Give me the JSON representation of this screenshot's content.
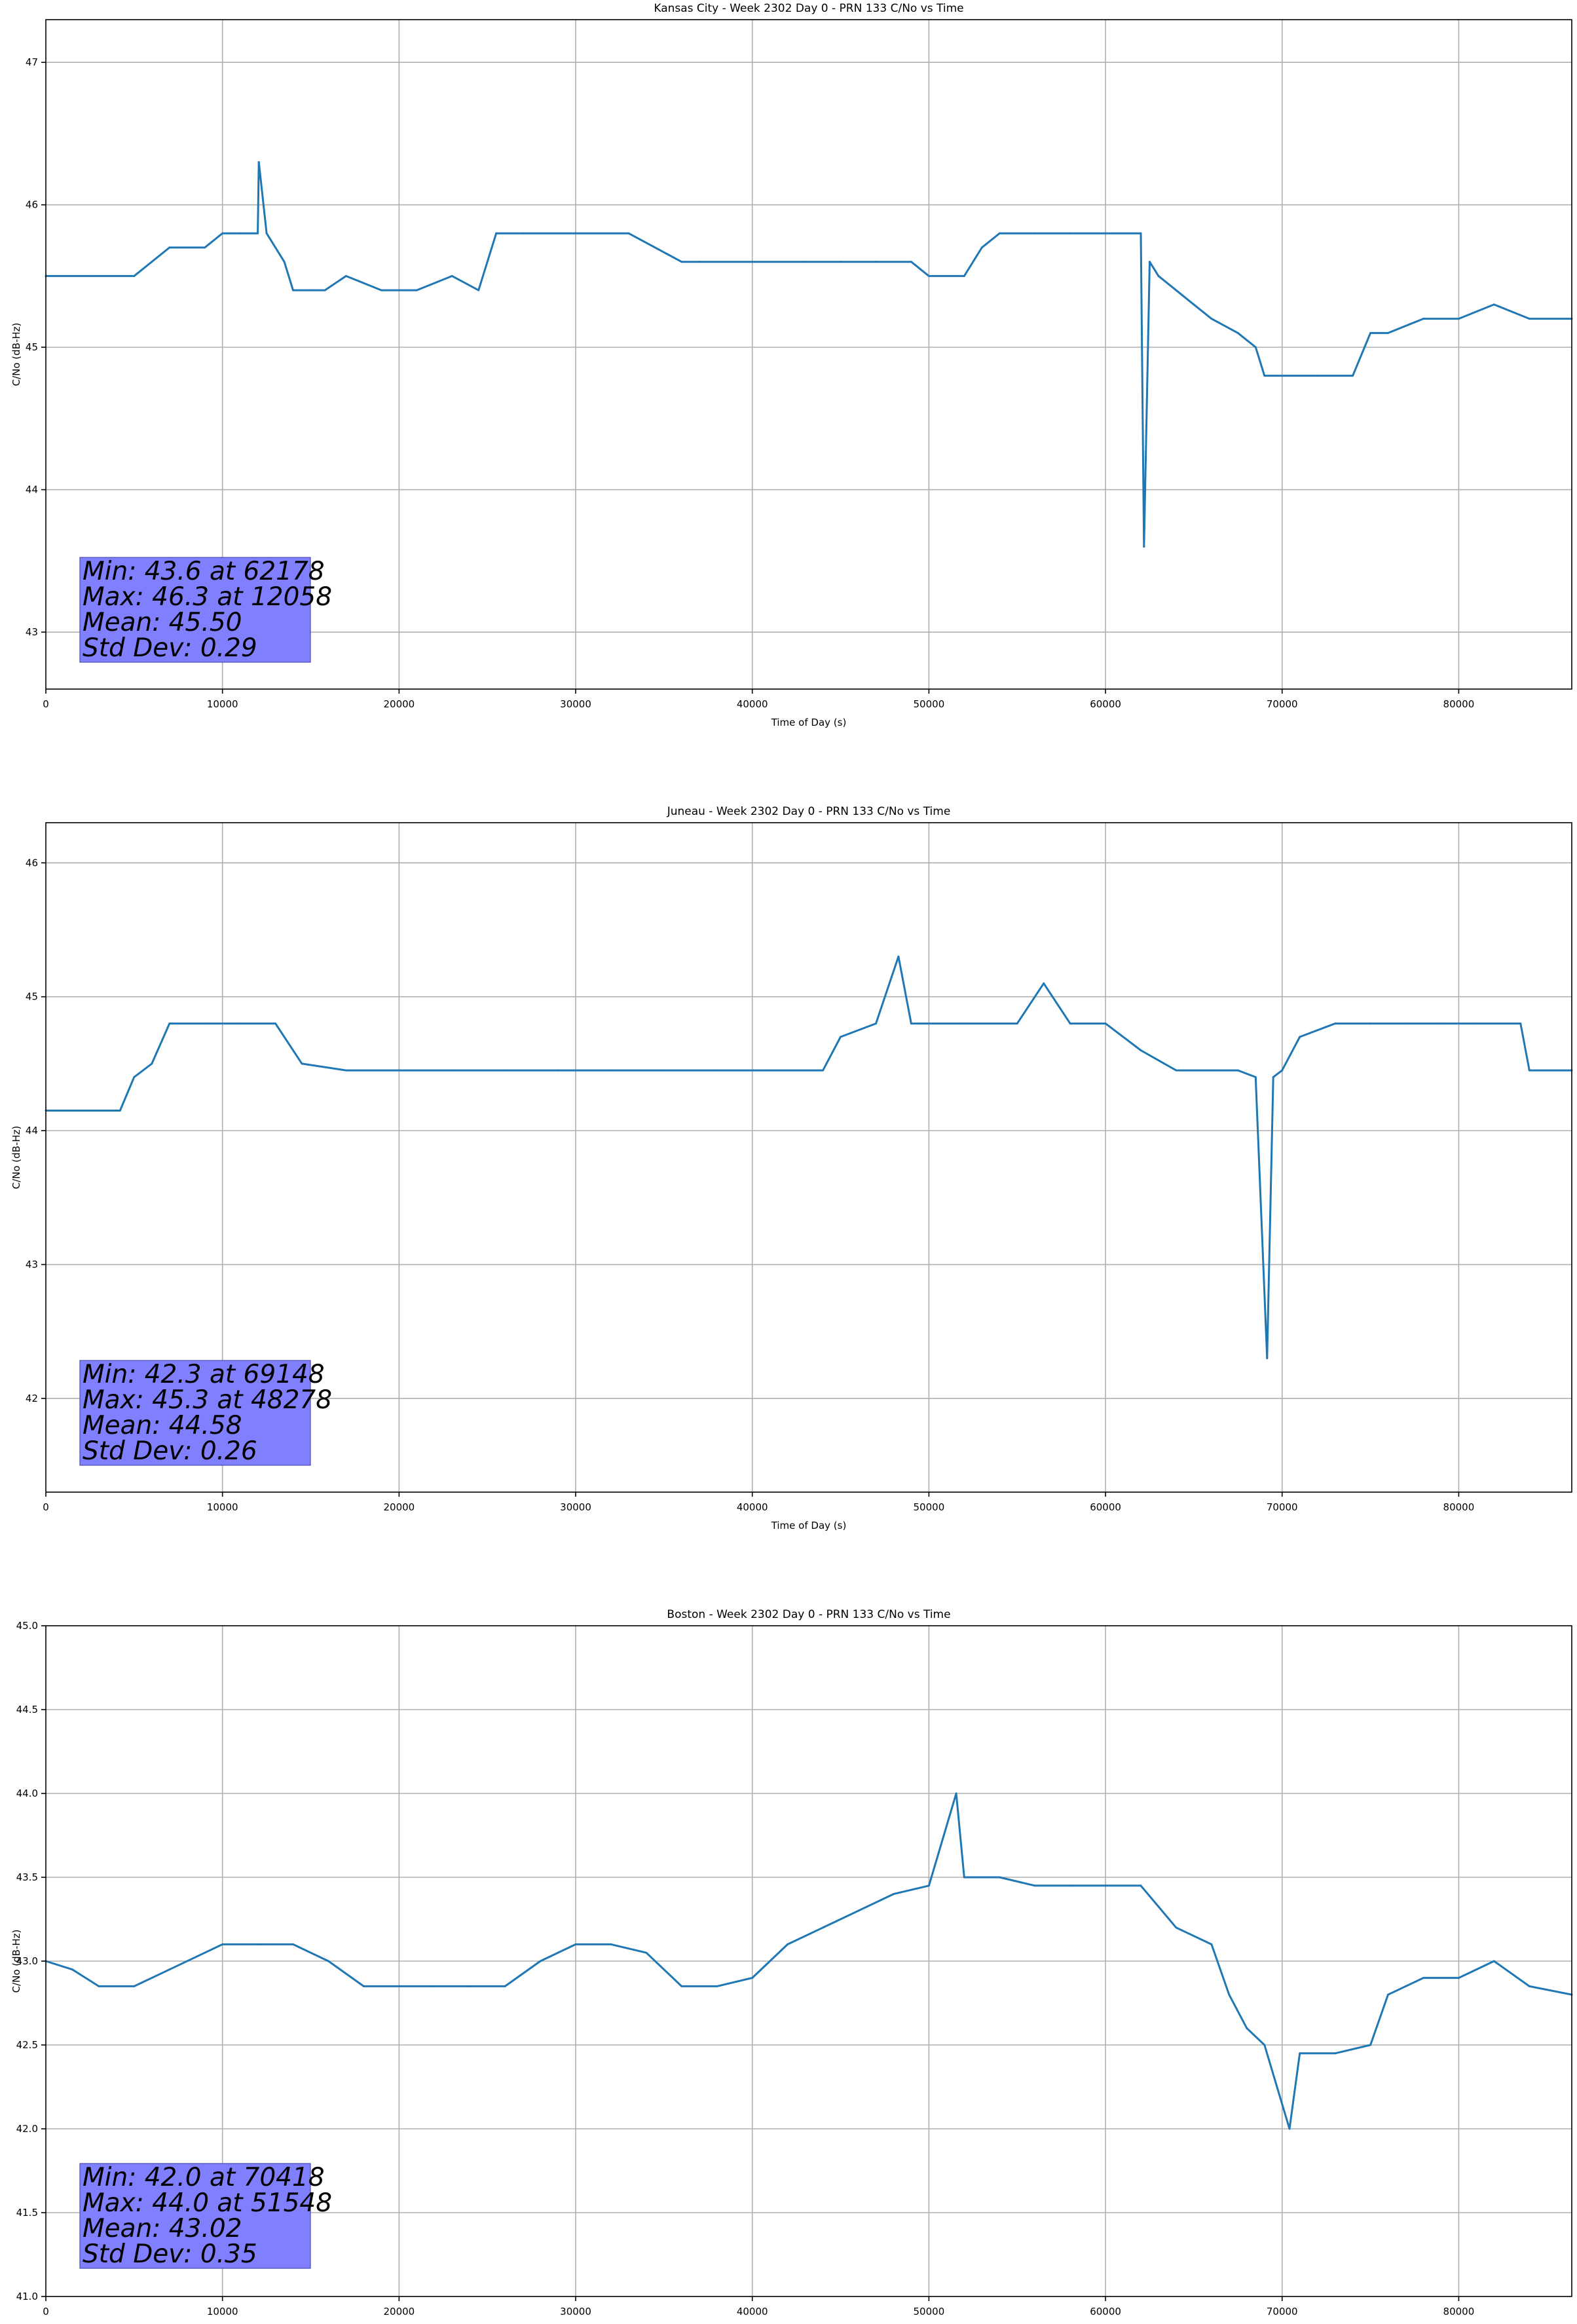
{
  "chart_data": [
    {
      "type": "line",
      "title": "Kansas City - Week 2302 Day 0 - PRN 133 C/No vs Time",
      "xlabel": "Time of Day (s)",
      "ylabel": "C/No (dB-Hz)",
      "xlim": [
        0,
        86400
      ],
      "ylim": [
        42.6,
        47.3
      ],
      "xticks": [
        0,
        10000,
        20000,
        30000,
        40000,
        50000,
        60000,
        70000,
        80000
      ],
      "xtick_labels": [
        "0",
        "10000",
        "20000",
        "30000",
        "40000",
        "50000",
        "60000",
        "70000",
        "80000"
      ],
      "yticks": [
        43,
        44,
        45,
        46,
        47
      ],
      "ytick_labels": [
        "43",
        "44",
        "45",
        "46",
        "47"
      ],
      "grid": true,
      "series_color": "#1f77b4",
      "series": [
        {
          "x": [
            0,
            2500,
            5000,
            7000,
            9000,
            10000,
            11000,
            12000,
            12058,
            12500,
            13500,
            14000,
            15000,
            15800,
            17000,
            19000,
            21000,
            23000,
            24500,
            25500,
            27000,
            30000,
            33000,
            36000,
            37000,
            40000,
            43000,
            45000,
            47000,
            49000,
            50000,
            52000,
            53000,
            54000,
            56000,
            58000,
            60000,
            62000,
            62178,
            62500,
            63000,
            64000,
            65000,
            66000,
            67500,
            68500,
            69000,
            70000,
            71000,
            72000,
            73000,
            74000,
            75000,
            76000,
            78000,
            80000,
            82000,
            84000,
            86400
          ],
          "y": [
            45.5,
            45.5,
            45.5,
            45.7,
            45.7,
            45.8,
            45.8,
            45.8,
            46.3,
            45.8,
            45.6,
            45.4,
            45.4,
            45.4,
            45.5,
            45.4,
            45.4,
            45.5,
            45.4,
            45.8,
            45.8,
            45.8,
            45.8,
            45.6,
            45.6,
            45.6,
            45.6,
            45.6,
            45.6,
            45.6,
            45.5,
            45.5,
            45.7,
            45.8,
            45.8,
            45.8,
            45.8,
            45.8,
            43.6,
            45.6,
            45.5,
            45.4,
            45.3,
            45.2,
            45.1,
            45.0,
            44.8,
            44.8,
            44.8,
            44.8,
            44.8,
            44.8,
            45.1,
            45.1,
            45.2,
            45.2,
            45.3,
            45.2,
            45.2
          ]
        }
      ],
      "stats_lines": [
        "Min: 43.6 at 62178",
        "Max: 46.3 at 12058",
        "Mean: 45.50",
        "Std Dev: 0.29"
      ]
    },
    {
      "type": "line",
      "title": "Juneau - Week 2302 Day 0 - PRN 133 C/No vs Time",
      "xlabel": "Time of Day (s)",
      "ylabel": "C/No (dB-Hz)",
      "xlim": [
        0,
        86400
      ],
      "ylim": [
        41.3,
        46.3
      ],
      "xticks": [
        0,
        10000,
        20000,
        30000,
        40000,
        50000,
        60000,
        70000,
        80000
      ],
      "xtick_labels": [
        "0",
        "10000",
        "20000",
        "30000",
        "40000",
        "50000",
        "60000",
        "70000",
        "80000"
      ],
      "yticks": [
        42,
        43,
        44,
        45,
        46
      ],
      "ytick_labels": [
        "42",
        "43",
        "44",
        "45",
        "46"
      ],
      "grid": true,
      "series_color": "#1f77b4",
      "series": [
        {
          "x": [
            0,
            2000,
            4200,
            5000,
            6000,
            7000,
            9000,
            11000,
            13000,
            14500,
            17000,
            20000,
            23000,
            26000,
            29000,
            32000,
            35000,
            38000,
            41000,
            44000,
            45000,
            47000,
            48278,
            49000,
            52000,
            55000,
            56500,
            58000,
            60000,
            62000,
            64000,
            66000,
            67500,
            68500,
            69148,
            69500,
            70000,
            71000,
            73000,
            75000,
            77000,
            79000,
            81000,
            83500,
            84000,
            86400
          ],
          "y": [
            44.15,
            44.15,
            44.15,
            44.4,
            44.5,
            44.8,
            44.8,
            44.8,
            44.8,
            44.5,
            44.45,
            44.45,
            44.45,
            44.45,
            44.45,
            44.45,
            44.45,
            44.45,
            44.45,
            44.45,
            44.7,
            44.8,
            45.3,
            44.8,
            44.8,
            44.8,
            45.1,
            44.8,
            44.8,
            44.6,
            44.45,
            44.45,
            44.45,
            44.4,
            42.3,
            44.4,
            44.45,
            44.7,
            44.8,
            44.8,
            44.8,
            44.8,
            44.8,
            44.8,
            44.45,
            44.45
          ]
        }
      ],
      "stats_lines": [
        "Min: 42.3 at 69148",
        "Max: 45.3 at 48278",
        "Mean: 44.58",
        "Std Dev: 0.26"
      ]
    },
    {
      "type": "line",
      "title": "Boston - Week 2302 Day 0 - PRN 133 C/No vs Time",
      "xlabel": "Time of Day (s)",
      "ylabel": "C/No (dB-Hz)",
      "xlim": [
        0,
        86400
      ],
      "ylim": [
        41.0,
        45.0
      ],
      "xticks": [
        0,
        10000,
        20000,
        30000,
        40000,
        50000,
        60000,
        70000,
        80000
      ],
      "xtick_labels": [
        "0",
        "10000",
        "20000",
        "30000",
        "40000",
        "50000",
        "60000",
        "70000",
        "80000"
      ],
      "yticks": [
        41.0,
        41.5,
        42.0,
        42.5,
        43.0,
        43.5,
        44.0,
        44.5,
        45.0
      ],
      "ytick_labels": [
        "41.0",
        "41.5",
        "42.0",
        "42.5",
        "43.0",
        "43.5",
        "44.0",
        "44.5",
        "45.0"
      ],
      "grid": true,
      "series_color": "#1f77b4",
      "series": [
        {
          "x": [
            0,
            1500,
            3000,
            5000,
            7000,
            9000,
            10000,
            12000,
            14000,
            16000,
            18000,
            20000,
            22000,
            24000,
            26000,
            28000,
            30000,
            32000,
            34000,
            36000,
            38000,
            40000,
            42000,
            44000,
            46000,
            48000,
            50000,
            51548,
            52000,
            54000,
            56000,
            58000,
            60000,
            62000,
            64000,
            66000,
            67000,
            68000,
            69000,
            70418,
            71000,
            73000,
            75000,
            76000,
            78000,
            80000,
            82000,
            84000,
            86400
          ],
          "y": [
            43.0,
            42.95,
            42.85,
            42.85,
            42.95,
            43.05,
            43.1,
            43.1,
            43.1,
            43.0,
            42.85,
            42.85,
            42.85,
            42.85,
            42.85,
            43.0,
            43.1,
            43.1,
            43.05,
            42.85,
            42.85,
            42.9,
            43.1,
            43.2,
            43.3,
            43.4,
            43.45,
            44.0,
            43.5,
            43.5,
            43.45,
            43.45,
            43.45,
            43.45,
            43.2,
            43.1,
            42.8,
            42.6,
            42.5,
            42.0,
            42.45,
            42.45,
            42.5,
            42.8,
            42.9,
            42.9,
            43.0,
            42.85,
            42.8
          ]
        }
      ],
      "stats_lines": [
        "Min: 42.0 at 70418",
        "Max: 44.0 at 51548",
        "Mean: 43.02",
        "Std Dev: 0.35"
      ]
    }
  ]
}
